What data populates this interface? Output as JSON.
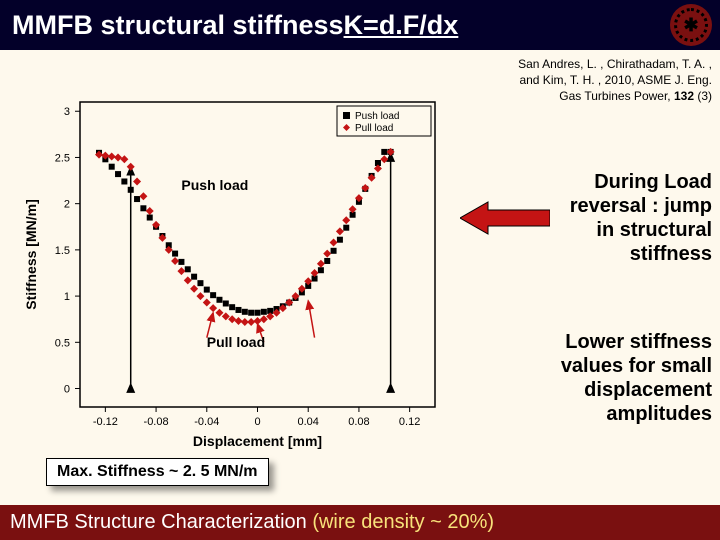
{
  "title": {
    "main": "MMFB structural stiffness ",
    "equation": "K=d.F/dx"
  },
  "citation": {
    "line1": "San Andres, L. , Chirathadam, T. A. ,",
    "line2": "and Kim, T. H. , 2010, ASME J. Eng.",
    "line3": "Gas Turbines Power, ",
    "volume": "132",
    "issue": " (3)"
  },
  "notes": {
    "n1_a": "During Load",
    "n1_b": "reversal : jump",
    "n1_c": "in structural",
    "n1_d": "stiffness",
    "n2_a": "Lower stiffness",
    "n2_b": "values for small",
    "n2_c": "displacement",
    "n2_d": "amplitudes"
  },
  "maxbox": "Max. Stiffness ~ 2. 5 MN/m",
  "footer": {
    "main": "MMFB Structure Characterization ",
    "paren": "(wire density ~ 20%)"
  },
  "chart": {
    "type": "scatter",
    "background_color": "#fef9ed",
    "axis_color": "#000000",
    "xlabel": "Displacement [mm]",
    "ylabel": "Stiffness [MN/m]",
    "x_ticks": [
      -0.12,
      -0.08,
      -0.04,
      0,
      0.04,
      0.08,
      0.12
    ],
    "y_ticks": [
      0,
      0.5,
      1,
      1.5,
      2,
      2.5,
      3
    ],
    "xlim": [
      -0.14,
      0.14
    ],
    "ylim": [
      -0.2,
      3.1
    ],
    "label_fontsize": 14,
    "tick_fontsize": 11,
    "legend": {
      "push": "Push load",
      "pull": "Pull load",
      "push_marker": "square",
      "pull_marker": "diamond",
      "push_color": "#000000",
      "pull_color": "#c41414",
      "border_color": "#000000",
      "bg": "#fef9ed"
    },
    "annotations": {
      "push_in_chart": "Push load",
      "pull_in_chart": "Pull load",
      "push_pos": [
        -0.06,
        2.15
      ],
      "pull_pos": [
        -0.04,
        0.45
      ]
    },
    "push_data": [
      [
        -0.125,
        2.55
      ],
      [
        -0.12,
        2.48
      ],
      [
        -0.115,
        2.4
      ],
      [
        -0.11,
        2.32
      ],
      [
        -0.105,
        2.24
      ],
      [
        -0.1,
        2.15
      ],
      [
        -0.095,
        2.05
      ],
      [
        -0.09,
        1.95
      ],
      [
        -0.085,
        1.85
      ],
      [
        -0.08,
        1.75
      ],
      [
        -0.075,
        1.65
      ],
      [
        -0.07,
        1.55
      ],
      [
        -0.065,
        1.46
      ],
      [
        -0.06,
        1.37
      ],
      [
        -0.055,
        1.29
      ],
      [
        -0.05,
        1.21
      ],
      [
        -0.045,
        1.14
      ],
      [
        -0.04,
        1.07
      ],
      [
        -0.035,
        1.01
      ],
      [
        -0.03,
        0.96
      ],
      [
        -0.025,
        0.92
      ],
      [
        -0.02,
        0.88
      ],
      [
        -0.015,
        0.85
      ],
      [
        -0.01,
        0.83
      ],
      [
        -0.005,
        0.82
      ],
      [
        0,
        0.82
      ],
      [
        0.005,
        0.83
      ],
      [
        0.01,
        0.84
      ],
      [
        0.015,
        0.86
      ],
      [
        0.02,
        0.89
      ],
      [
        0.025,
        0.93
      ],
      [
        0.03,
        0.98
      ],
      [
        0.035,
        1.04
      ],
      [
        0.04,
        1.11
      ],
      [
        0.045,
        1.19
      ],
      [
        0.05,
        1.28
      ],
      [
        0.055,
        1.38
      ],
      [
        0.06,
        1.49
      ],
      [
        0.065,
        1.61
      ],
      [
        0.07,
        1.74
      ],
      [
        0.075,
        1.88
      ],
      [
        0.08,
        2.02
      ],
      [
        0.085,
        2.16
      ],
      [
        0.09,
        2.3
      ],
      [
        0.095,
        2.44
      ],
      [
        0.1,
        2.56
      ],
      [
        0.105,
        2.56
      ]
    ],
    "pull_data": [
      [
        0.105,
        2.56
      ],
      [
        0.1,
        2.48
      ],
      [
        0.095,
        2.38
      ],
      [
        0.09,
        2.28
      ],
      [
        0.085,
        2.17
      ],
      [
        0.08,
        2.06
      ],
      [
        0.075,
        1.94
      ],
      [
        0.07,
        1.82
      ],
      [
        0.065,
        1.7
      ],
      [
        0.06,
        1.58
      ],
      [
        0.055,
        1.46
      ],
      [
        0.05,
        1.35
      ],
      [
        0.045,
        1.25
      ],
      [
        0.04,
        1.16
      ],
      [
        0.035,
        1.08
      ],
      [
        0.03,
        1.0
      ],
      [
        0.025,
        0.93
      ],
      [
        0.02,
        0.87
      ],
      [
        0.015,
        0.82
      ],
      [
        0.01,
        0.78
      ],
      [
        0.005,
        0.75
      ],
      [
        0,
        0.73
      ],
      [
        -0.005,
        0.72
      ],
      [
        -0.01,
        0.72
      ],
      [
        -0.015,
        0.73
      ],
      [
        -0.02,
        0.75
      ],
      [
        -0.025,
        0.78
      ],
      [
        -0.03,
        0.82
      ],
      [
        -0.035,
        0.87
      ],
      [
        -0.04,
        0.93
      ],
      [
        -0.045,
        1.0
      ],
      [
        -0.05,
        1.08
      ],
      [
        -0.055,
        1.17
      ],
      [
        -0.06,
        1.27
      ],
      [
        -0.065,
        1.38
      ],
      [
        -0.07,
        1.5
      ],
      [
        -0.075,
        1.63
      ],
      [
        -0.08,
        1.77
      ],
      [
        -0.085,
        1.92
      ],
      [
        -0.09,
        2.08
      ],
      [
        -0.095,
        2.24
      ],
      [
        -0.1,
        2.4
      ],
      [
        -0.105,
        2.48
      ],
      [
        -0.11,
        2.5
      ],
      [
        -0.115,
        2.51
      ],
      [
        -0.12,
        2.52
      ],
      [
        -0.125,
        2.53
      ]
    ],
    "arrows": [
      {
        "x": -0.1,
        "y_from": 0.05,
        "y_to": 2.4,
        "color": "#000000"
      },
      {
        "x": 0.105,
        "y_from": 0.05,
        "y_to": 2.55,
        "color": "#000000"
      }
    ],
    "pull_arrows": [
      {
        "from": [
          -0.04,
          0.55
        ],
        "to": [
          -0.035,
          0.82
        ],
        "color": "#c41414"
      },
      {
        "from": [
          0.005,
          0.5
        ],
        "to": [
          0.0,
          0.7
        ],
        "color": "#c41414"
      },
      {
        "from": [
          0.045,
          0.55
        ],
        "to": [
          0.04,
          0.95
        ],
        "color": "#c41414"
      }
    ],
    "big_arrow_color": "#c41414"
  }
}
